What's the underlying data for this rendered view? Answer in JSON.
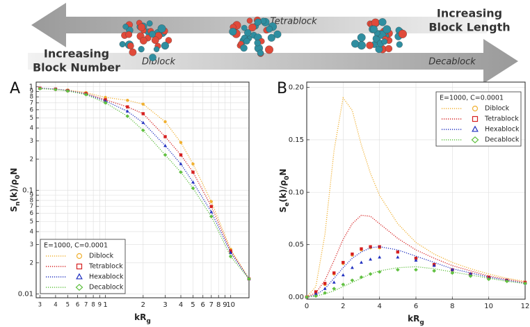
{
  "schematic": {
    "top_right": [
      "Increasing",
      "Block Length"
    ],
    "bottom_left": [
      "Increasing",
      "Block Number"
    ],
    "blocks": [
      "Diblock",
      "Tetrablock",
      "Decablock"
    ]
  },
  "chart_data": [
    {
      "type": "line",
      "panel_label": "A",
      "xlabel": [
        {
          "text": "kR"
        },
        {
          "text": "g",
          "sub": true
        }
      ],
      "ylabel": [
        {
          "text": "S"
        },
        {
          "text": "n",
          "sub": true
        },
        {
          "text": "(k)/ρ"
        },
        {
          "text": "0",
          "sub": true
        },
        {
          "text": "N"
        }
      ],
      "xscale": "log",
      "yscale": "log",
      "grid": true,
      "legend": "lower left",
      "legend_title": "E=1000, C=0.0001",
      "xlim": [
        0.28,
        14
      ],
      "ylim": [
        0.0092,
        1.11
      ],
      "xticks": [
        {
          "value": 0.3,
          "label": "3"
        },
        {
          "value": 0.4,
          "label": "4"
        },
        {
          "value": 0.5,
          "label": "5"
        },
        {
          "value": 0.6,
          "label": "6"
        },
        {
          "value": 0.7,
          "label": "7"
        },
        {
          "value": 0.8,
          "label": "8"
        },
        {
          "value": 0.9,
          "label": "9"
        },
        1,
        2,
        3,
        4,
        5,
        6,
        7,
        8,
        9,
        10
      ],
      "yticks": [
        0.01,
        {
          "value": 0.02,
          "label": "2"
        },
        {
          "value": 0.03,
          "label": "3"
        },
        {
          "value": 0.04,
          "label": "4"
        },
        {
          "value": 0.05,
          "label": "5"
        },
        {
          "value": 0.06,
          "label": "6"
        },
        {
          "value": 0.07,
          "label": "7"
        },
        {
          "value": 0.08,
          "label": "8"
        },
        {
          "value": 0.09,
          "label": "9"
        },
        0.1,
        {
          "value": 0.2,
          "label": "2"
        },
        {
          "value": 0.3,
          "label": "3"
        },
        {
          "value": 0.4,
          "label": "4"
        },
        {
          "value": 0.5,
          "label": "5"
        },
        {
          "value": 0.6,
          "label": "6"
        },
        {
          "value": 0.7,
          "label": "7"
        },
        {
          "value": 0.8,
          "label": "8"
        },
        {
          "value": 0.9,
          "label": "9"
        },
        1
      ],
      "x": [
        0.3,
        0.4,
        0.5,
        0.7,
        1,
        1.5,
        2,
        3,
        4,
        5,
        7,
        10,
        14
      ],
      "series": [
        {
          "name": "Diblock",
          "color": "#f0b030",
          "marker": "circle",
          "values": [
            0.97,
            0.95,
            0.93,
            0.88,
            0.79,
            0.74,
            0.68,
            0.46,
            0.29,
            0.18,
            0.078,
            0.027,
            0.014
          ]
        },
        {
          "name": "Tetrablock",
          "color": "#d62020",
          "marker": "square",
          "values": [
            0.97,
            0.95,
            0.92,
            0.86,
            0.75,
            0.64,
            0.55,
            0.33,
            0.22,
            0.15,
            0.07,
            0.026,
            0.014
          ]
        },
        {
          "name": "Hexablock",
          "color": "#2030c0",
          "marker": "triangle",
          "values": [
            0.97,
            0.95,
            0.92,
            0.85,
            0.73,
            0.58,
            0.45,
            0.27,
            0.18,
            0.12,
            0.062,
            0.025,
            0.014
          ]
        },
        {
          "name": "Decablock",
          "color": "#60c040",
          "marker": "diamond",
          "values": [
            0.96,
            0.94,
            0.91,
            0.84,
            0.7,
            0.52,
            0.38,
            0.22,
            0.15,
            0.105,
            0.056,
            0.023,
            0.014
          ]
        }
      ]
    },
    {
      "type": "line",
      "panel_label": "B",
      "xlabel": [
        {
          "text": "kR"
        },
        {
          "text": "g",
          "sub": true
        }
      ],
      "ylabel": [
        {
          "text": "S"
        },
        {
          "text": "e",
          "sub": true
        },
        {
          "text": "(k)/ρ"
        },
        {
          "text": "0",
          "sub": true
        },
        {
          "text": "N"
        }
      ],
      "grid": true,
      "legend": "upper right",
      "legend_title": "E=1000, C=0.0001",
      "xlim": [
        0,
        12
      ],
      "ylim": [
        -0.002,
        0.205
      ],
      "xticks": [
        0,
        2,
        4,
        6,
        8,
        10,
        12
      ],
      "yticks": [
        {
          "value": 0,
          "label": "0.00"
        },
        0.05,
        {
          "value": 0.1,
          "label": "0.10"
        },
        0.15,
        {
          "value": 0.2,
          "label": "0.20"
        }
      ],
      "x": [
        0,
        0.5,
        1,
        1.5,
        2,
        2.5,
        3,
        3.5,
        4,
        5,
        6,
        7,
        8,
        9,
        10,
        11,
        12
      ],
      "series": [
        {
          "name": "Diblock",
          "color": "#f0b030",
          "marker": "circle",
          "values": [
            0,
            0.01,
            0.06,
            0.14,
            0.19,
            0.178,
            0.145,
            0.118,
            0.097,
            0.07,
            0.052,
            0.041,
            0.033,
            0.027,
            0.022,
            0.018,
            0.015
          ],
          "marker_values": [
            0,
            0.004,
            0.012,
            0.022,
            0.032,
            0.04,
            0.045,
            0.047,
            0.047,
            0.043,
            0.037,
            0.031,
            0.026,
            0.022,
            0.019,
            0.016,
            0.014
          ]
        },
        {
          "name": "Tetrablock",
          "color": "#d62020",
          "marker": "square",
          "values": [
            0,
            0.004,
            0.016,
            0.035,
            0.055,
            0.07,
            0.078,
            0.077,
            0.07,
            0.056,
            0.045,
            0.037,
            0.03,
            0.025,
            0.02,
            0.017,
            0.014
          ],
          "marker_values": [
            0,
            0.005,
            0.013,
            0.023,
            0.033,
            0.041,
            0.046,
            0.048,
            0.048,
            0.043,
            0.037,
            0.031,
            0.026,
            0.022,
            0.019,
            0.016,
            0.014
          ]
        },
        {
          "name": "Hexablock",
          "color": "#2030c0",
          "marker": "triangle",
          "values": [
            0,
            0.002,
            0.008,
            0.018,
            0.028,
            0.037,
            0.043,
            0.047,
            0.048,
            0.045,
            0.039,
            0.033,
            0.027,
            0.023,
            0.019,
            0.016,
            0.013
          ],
          "marker_values": [
            0,
            0.003,
            0.008,
            0.014,
            0.021,
            0.028,
            0.033,
            0.036,
            0.038,
            0.038,
            0.035,
            0.03,
            0.026,
            0.022,
            0.018,
            0.016,
            0.013
          ]
        },
        {
          "name": "Decablock",
          "color": "#60c040",
          "marker": "diamond",
          "values": [
            0,
            0.001,
            0.003,
            0.006,
            0.01,
            0.014,
            0.018,
            0.022,
            0.025,
            0.028,
            0.029,
            0.027,
            0.024,
            0.021,
            0.018,
            0.015,
            0.013
          ],
          "marker_values": [
            0,
            0.001,
            0.004,
            0.008,
            0.012,
            0.016,
            0.019,
            0.022,
            0.024,
            0.026,
            0.026,
            0.025,
            0.023,
            0.02,
            0.017,
            0.015,
            0.013
          ]
        }
      ]
    }
  ]
}
